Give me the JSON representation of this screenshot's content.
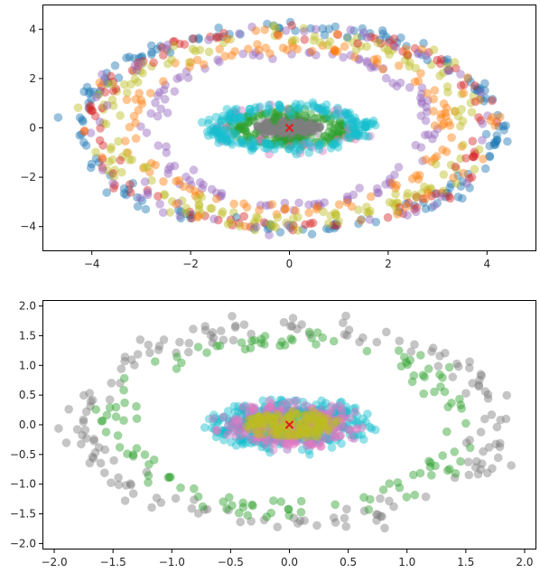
{
  "chart_data": [
    {
      "type": "scatter",
      "title": "",
      "xlabel": "",
      "ylabel": "",
      "xlim": [
        -5.0,
        5.0
      ],
      "ylim": [
        -5.0,
        5.0
      ],
      "xticks": [
        -4,
        -2,
        0,
        2,
        4
      ],
      "yticks": [
        -4,
        -2,
        0,
        2,
        4
      ],
      "xtick_labels": [
        "−4",
        "−2",
        "0",
        "2",
        "4"
      ],
      "ytick_labels": [
        "−4",
        "−2",
        "0",
        "2",
        "4"
      ],
      "grid": false,
      "legend": "none",
      "point_alpha": 0.45,
      "seed": 11,
      "series": [
        {
          "color": "#7f7f7f",
          "shape": "ellipse",
          "count": 240,
          "rx": 0.65,
          "ry": 0.42,
          "fill": true,
          "jitter": 0.05
        },
        {
          "color": "#2ca02c",
          "shape": "ring",
          "count": 150,
          "rx": 1.05,
          "ry": 0.6,
          "jitter": 0.12
        },
        {
          "color": "#e377c2",
          "shape": "ring",
          "count": 40,
          "rx": 1.4,
          "ry": 0.82,
          "jitter": 0.12
        },
        {
          "color": "#17becf",
          "shape": "ring",
          "count": 200,
          "rx": 1.5,
          "ry": 0.82,
          "jitter": 0.12
        },
        {
          "color": "#9467bd",
          "shape": "ring",
          "count": 110,
          "rx": 2.8,
          "ry": 3.15,
          "jitter": 0.12
        },
        {
          "color": "#ff7f0e",
          "shape": "ring",
          "count": 110,
          "rx": 3.2,
          "ry": 3.3,
          "jitter": 0.12
        },
        {
          "color": "#bcbd22",
          "shape": "ring",
          "count": 130,
          "rx": 3.6,
          "ry": 3.7,
          "jitter": 0.15
        },
        {
          "color": "#1f77b4",
          "shape": "ring",
          "count": 170,
          "rx": 4.25,
          "ry": 4.05,
          "jitter": 0.14
        },
        {
          "color": "#d62728",
          "shape": "ring",
          "count": 110,
          "rx": 4.0,
          "ry": 4.0,
          "jitter": 0.14
        },
        {
          "color": "#bcbd22",
          "shape": "ring",
          "count": 40,
          "rx": 4.05,
          "ry": 4.0,
          "jitter": 0.14
        },
        {
          "color": "#9467bd",
          "shape": "ring",
          "count": 50,
          "rx": 4.1,
          "ry": 4.02,
          "jitter": 0.14
        },
        {
          "color": "#ff7f0e",
          "shape": "ring",
          "count": 30,
          "rx": 4.1,
          "ry": 4.02,
          "jitter": 0.14
        }
      ],
      "center": {
        "x": 0,
        "y": 0,
        "marker": "x",
        "color": "#e41a1c"
      }
    },
    {
      "type": "scatter",
      "title": "",
      "xlabel": "",
      "ylabel": "",
      "xlim": [
        -2.1,
        2.1
      ],
      "ylim": [
        -2.1,
        2.1
      ],
      "xticks": [
        -2.0,
        -1.5,
        -1.0,
        -0.5,
        0.0,
        0.5,
        1.0,
        1.5,
        2.0
      ],
      "yticks": [
        -2.0,
        -1.5,
        -1.0,
        -0.5,
        0.0,
        0.5,
        1.0,
        1.5,
        2.0
      ],
      "xtick_labels": [
        "−2.0",
        "−1.5",
        "−1.0",
        "−0.5",
        "0.0",
        "0.5",
        "1.0",
        "1.5",
        "2.0"
      ],
      "ytick_labels": [
        "−2.0",
        "−1.5",
        "−1.0",
        "−0.5",
        "0.0",
        "0.5",
        "1.0",
        "1.5",
        "2.0"
      ],
      "grid": false,
      "legend": "none",
      "point_alpha": 0.45,
      "seed": 29,
      "series": [
        {
          "color": "#7f7f7f",
          "shape": "ring",
          "count": 170,
          "rx": 1.75,
          "ry": 1.68,
          "jitter": 0.1
        },
        {
          "color": "#2ca02c",
          "shape": "ring",
          "count": 130,
          "rx": 1.45,
          "ry": 1.42,
          "jitter": 0.09
        },
        {
          "color": "#9467bd",
          "shape": "ellipse",
          "count": 160,
          "rx": 0.55,
          "ry": 0.33,
          "fill": true,
          "jitter": 0.05
        },
        {
          "color": "#17becf",
          "shape": "ellipse",
          "count": 280,
          "rx": 0.68,
          "ry": 0.4,
          "fill": true,
          "jitter": 0.05
        },
        {
          "color": "#e377c2",
          "shape": "ellipse",
          "count": 180,
          "rx": 0.6,
          "ry": 0.35,
          "fill": true,
          "jitter": 0.05
        },
        {
          "color": "#bcbd22",
          "shape": "ellipse",
          "count": 160,
          "rx": 0.4,
          "ry": 0.2,
          "fill": true,
          "jitter": 0.03
        }
      ],
      "center": {
        "x": 0,
        "y": 0,
        "marker": "x",
        "color": "#e41a1c"
      }
    }
  ]
}
